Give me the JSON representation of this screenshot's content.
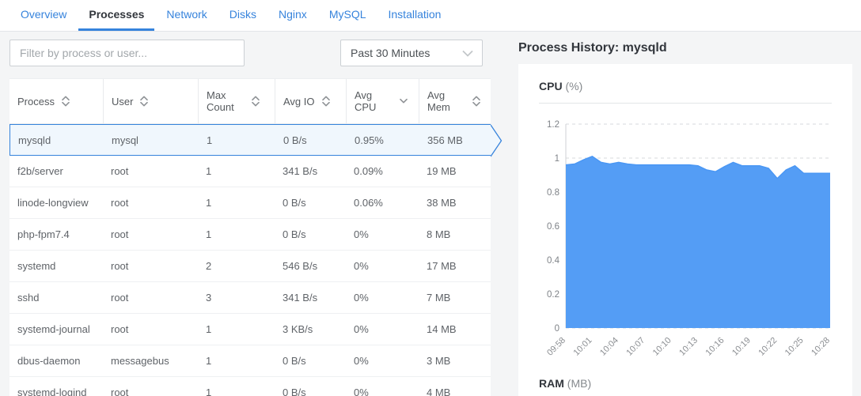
{
  "colors": {
    "accent": "#3683dc",
    "chart_fill": "#549df5",
    "chart_line": "#4a97f4",
    "selected_row_bg": "#f0f7fd"
  },
  "tabs": {
    "items": [
      {
        "label": "Overview",
        "active": false
      },
      {
        "label": "Processes",
        "active": true
      },
      {
        "label": "Network",
        "active": false
      },
      {
        "label": "Disks",
        "active": false
      },
      {
        "label": "Nginx",
        "active": false
      },
      {
        "label": "MySQL",
        "active": false
      },
      {
        "label": "Installation",
        "active": false
      }
    ]
  },
  "toolbar": {
    "filter_placeholder": "Filter by process or user...",
    "time_range_value": "Past 30 Minutes",
    "time_range_icon": "chevron-down-icon"
  },
  "table": {
    "columns": [
      {
        "label": "Process",
        "sort": "both"
      },
      {
        "label": "User",
        "sort": "both"
      },
      {
        "label": "Max Count",
        "sort": "both"
      },
      {
        "label": "Avg IO",
        "sort": "both"
      },
      {
        "label": "Avg CPU",
        "sort": "desc"
      },
      {
        "label": "Avg Mem",
        "sort": "both"
      }
    ],
    "rows": [
      {
        "process": "mysqld",
        "user": "mysql",
        "max_count": "1",
        "avg_io": "0 B/s",
        "avg_cpu": "0.95%",
        "avg_mem": "356 MB",
        "selected": true
      },
      {
        "process": "f2b/server",
        "user": "root",
        "max_count": "1",
        "avg_io": "341 B/s",
        "avg_cpu": "0.09%",
        "avg_mem": "19 MB",
        "selected": false
      },
      {
        "process": "linode-longview",
        "user": "root",
        "max_count": "1",
        "avg_io": "0 B/s",
        "avg_cpu": "0.06%",
        "avg_mem": "38 MB",
        "selected": false
      },
      {
        "process": "php-fpm7.4",
        "user": "root",
        "max_count": "1",
        "avg_io": "0 B/s",
        "avg_cpu": "0%",
        "avg_mem": "8 MB",
        "selected": false
      },
      {
        "process": "systemd",
        "user": "root",
        "max_count": "2",
        "avg_io": "546 B/s",
        "avg_cpu": "0%",
        "avg_mem": "17 MB",
        "selected": false
      },
      {
        "process": "sshd",
        "user": "root",
        "max_count": "3",
        "avg_io": "341 B/s",
        "avg_cpu": "0%",
        "avg_mem": "7 MB",
        "selected": false
      },
      {
        "process": "systemd-journal",
        "user": "root",
        "max_count": "1",
        "avg_io": "3 KB/s",
        "avg_cpu": "0%",
        "avg_mem": "14 MB",
        "selected": false
      },
      {
        "process": "dbus-daemon",
        "user": "messagebus",
        "max_count": "1",
        "avg_io": "0 B/s",
        "avg_cpu": "0%",
        "avg_mem": "3 MB",
        "selected": false
      },
      {
        "process": "systemd-logind",
        "user": "root",
        "max_count": "1",
        "avg_io": "0 B/s",
        "avg_cpu": "0%",
        "avg_mem": "4 MB",
        "selected": false
      }
    ]
  },
  "detail": {
    "title": "Process History: mysqld",
    "cpu_section": {
      "name": "CPU",
      "unit": "(%)"
    },
    "ram_section": {
      "name": "RAM",
      "unit": "(MB)"
    }
  },
  "chart_data": {
    "type": "area",
    "title": "CPU (%)",
    "ylabel": "CPU %",
    "ylim": [
      0,
      1.2
    ],
    "y_ticks": [
      0,
      0.2,
      0.4,
      0.6,
      0.8,
      1,
      1.2
    ],
    "x_tick_labels": [
      "09:58",
      "10:01",
      "10:04",
      "10:07",
      "10:10",
      "10:13",
      "10:16",
      "10:19",
      "10:22",
      "10:25",
      "10:28"
    ],
    "grid": "dashed-horizontal",
    "legend": "none",
    "series": [
      {
        "name": "mysqld CPU %",
        "values": [
          0.96,
          0.965,
          0.99,
          1.01,
          0.975,
          0.965,
          0.975,
          0.965,
          0.96,
          0.96,
          0.96,
          0.96,
          0.96,
          0.96,
          0.96,
          0.955,
          0.93,
          0.92,
          0.95,
          0.975,
          0.955,
          0.955,
          0.955,
          0.94,
          0.88,
          0.93,
          0.955,
          0.91,
          0.91,
          0.91,
          0.91
        ]
      }
    ]
  }
}
